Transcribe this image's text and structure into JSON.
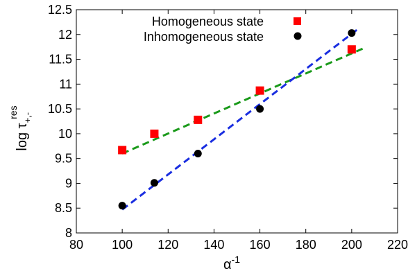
{
  "chart_data": {
    "type": "scatter",
    "title": "",
    "xlabel": "α",
    "xlabel_sup": "-1",
    "ylabel": "log τ",
    "ylabel_sub": "+,-",
    "ylabel_sup": "res",
    "xlim": [
      80,
      220
    ],
    "ylim": [
      8,
      12.5
    ],
    "xticks": [
      "80",
      "100",
      "120",
      "140",
      "160",
      "180",
      "200",
      "220"
    ],
    "yticks": [
      "8",
      "8.5",
      "9",
      "9.5",
      "10",
      "10.5",
      "11",
      "11.5",
      "12",
      "12.5"
    ],
    "grid": false,
    "legend_position": "top-center",
    "series": [
      {
        "name": "Homogeneous state",
        "marker": "square",
        "color": "#ff0000",
        "x": [
          100,
          114,
          133,
          160,
          200
        ],
        "y": [
          9.67,
          10.0,
          10.28,
          10.87,
          11.7
        ]
      },
      {
        "name": "Inhomogeneous state",
        "marker": "circle",
        "color": "#000000",
        "x": [
          100,
          114,
          133,
          160,
          200
        ],
        "y": [
          8.55,
          9.01,
          9.6,
          10.5,
          12.03
        ]
      }
    ],
    "fit_lines": [
      {
        "color": "#1a9a1a",
        "x": [
          100,
          205
        ],
        "y": [
          9.6,
          11.72
        ]
      },
      {
        "color": "#1a2ee0",
        "x": [
          100,
          203
        ],
        "y": [
          8.47,
          12.12
        ]
      }
    ]
  }
}
